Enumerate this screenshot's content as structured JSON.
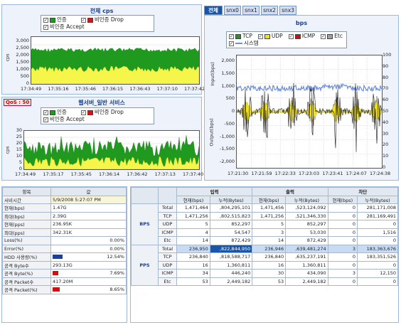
{
  "colors": {
    "auth": "#1f9a1f",
    "unauth_drop": "#e01010",
    "unauth_accept": "#f5f54a",
    "tcp": "#2e8b2e",
    "udp": "#f0e020",
    "icmp": "#d01010",
    "etc": "#a0a0a0",
    "system": "#6f8fd8"
  },
  "legend": {
    "auth": "인증",
    "unauth_drop": "비인증 Drop",
    "unauth_accept": "비인증 Accept",
    "tcp": "TCP",
    "udp": "UDP",
    "icmp": "ICMP",
    "etc": "Etc",
    "system": "시스템"
  },
  "chart_top": {
    "title": "전체 cps",
    "ylabel": "cps",
    "yticks": [
      "3,000",
      "2,500",
      "2,000",
      "1,500",
      "1,000",
      "500",
      "0"
    ],
    "xticks": [
      "17:34:49",
      "17:35:16",
      "17:35:46",
      "17:36:15",
      "17:36:43",
      "17:37:10",
      "17:37:42"
    ]
  },
  "chart_mid": {
    "title": "웹서버_일반 서비스",
    "badge": "QoS : 50",
    "ylabel": "cps",
    "yticks": [
      "30",
      "25",
      "20",
      "15",
      "10",
      "5",
      "0"
    ],
    "xticks": [
      "17:34:49",
      "17:35:17",
      "17:35:45",
      "17:36:14",
      "17:36:42",
      "17:37:13",
      "17:37:40"
    ]
  },
  "tabs": [
    "전체",
    "snx0",
    "snx1",
    "snx2",
    "snx3"
  ],
  "chart_bps": {
    "title": "bps",
    "ylabel_top": "Input(bps)",
    "ylabel_bottom": "Output(bps)",
    "yticks_left": [
      "2,000",
      "1,500",
      "1,000",
      "500",
      "0",
      "-500",
      "-1,000",
      "-1,500",
      "-2,000"
    ],
    "yticks_right": [
      "100",
      "90",
      "80",
      "70",
      "60",
      "50",
      "40",
      "30",
      "20",
      "10",
      "0"
    ],
    "xticks": [
      "17:21:30",
      "17:21:59",
      "17:22:33",
      "17:23:03",
      "17:23:41",
      "17:24:07",
      "17:24:38"
    ]
  },
  "left_table": {
    "headers": [
      "항목",
      "값"
    ],
    "rows": [
      {
        "k": "서비시간",
        "v": "5/9/2008 5:27:07 PM"
      },
      {
        "k": "현재(bps)",
        "v": "1.47G"
      },
      {
        "k": "최대(bps)",
        "v": "2.39G"
      },
      {
        "k": "현재(pps)",
        "v": "236.95K"
      },
      {
        "k": "최대(pps)",
        "v": "342.31K"
      },
      {
        "k": "Loss(%)",
        "v": "0.00%",
        "bar": 0
      },
      {
        "k": "Error(%)",
        "v": "0.00%",
        "bar": 0
      },
      {
        "k": "HDD 사용량(%)",
        "v": "12.54%",
        "bar": 12.54,
        "barcolor": "#1a3f9c"
      },
      {
        "k": "공격 Byte수",
        "v": "293.13G"
      },
      {
        "k": "공격 Byte(%)",
        "v": "7.69%",
        "bar": 7.69,
        "barcolor": "#d01010"
      },
      {
        "k": "공격 Packet수",
        "v": "417.20M"
      },
      {
        "k": "공격 Packet(%)",
        "v": "8.65%",
        "bar": 8.65,
        "barcolor": "#d01010"
      }
    ]
  },
  "right_table": {
    "group_headers": [
      "입력",
      "출력",
      "차단"
    ],
    "sub_headers": [
      "현재(bps)",
      "누적(Bytes)",
      "현재(bps)",
      "누적(Bytes)",
      "현재(bps)",
      "누적(Bytes)"
    ],
    "groups": [
      {
        "name": "BPS",
        "rows": [
          {
            "label": "Total",
            "v": [
              "1,471,464",
              ",804,295,101",
              "1,471,456",
              ",523,124,092",
              "0",
              "281,171,008"
            ]
          },
          {
            "label": "TCP",
            "v": [
              "1,471,256",
              ",802,515,823",
              "1,471,256",
              ",521,346,330",
              "0",
              "281,169,491"
            ]
          },
          {
            "label": "UDP",
            "v": [
              "5",
              "852,297",
              "5",
              "852,297",
              "0",
              "0"
            ]
          },
          {
            "label": "ICMP",
            "v": [
              "4",
              "54,547",
              "3",
              "53,030",
              "0",
              "1,516"
            ]
          },
          {
            "label": "Etc",
            "v": [
              "14",
              "872,429",
              "14",
              "872,429",
              "0",
              "0"
            ]
          }
        ]
      },
      {
        "name": "PPS",
        "rows": [
          {
            "label": "Total",
            "v": [
              "236,950",
              ",822,844,950",
              "236,946",
              ",639,481,274",
              "3",
              "183,363,676"
            ]
          },
          {
            "label": "TCP",
            "v": [
              "236,840",
              ",818,588,717",
              "236,840",
              ",635,237,191",
              "0",
              "183,351,526"
            ]
          },
          {
            "label": "UDP",
            "v": [
              "16",
              "1,360,811",
              "16",
              "1,360,811",
              "0",
              "0"
            ]
          },
          {
            "label": "ICMP",
            "v": [
              "34",
              "446,240",
              "30",
              "434,090",
              "3",
              "12,150"
            ]
          },
          {
            "label": "Etc",
            "v": [
              "53",
              "2,449,182",
              "53",
              "2,449,182",
              "0",
              "0"
            ]
          }
        ]
      }
    ]
  }
}
